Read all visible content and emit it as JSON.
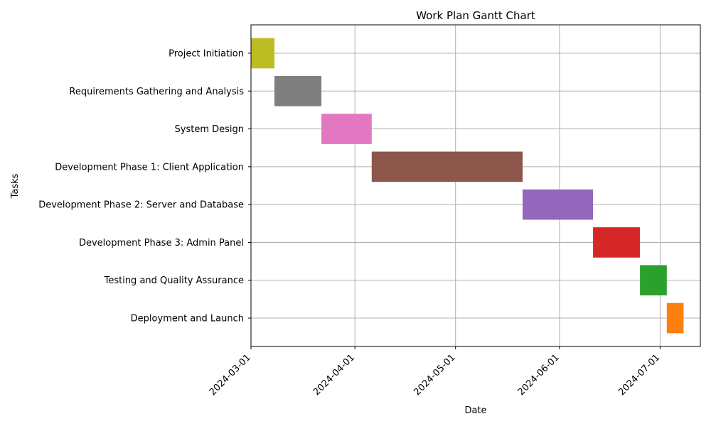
{
  "chart_data": {
    "type": "gantt",
    "title": "Work Plan Gantt Chart",
    "xlabel": "Date",
    "ylabel": "Tasks",
    "xlim": [
      "2024-03-01",
      "2024-07-13"
    ],
    "x_ticks": [
      "2024-03-01",
      "2024-04-01",
      "2024-05-01",
      "2024-06-01",
      "2024-07-01"
    ],
    "grid": true,
    "tasks": [
      {
        "label": "Project Initiation",
        "start": "2024-03-01",
        "end": "2024-03-07",
        "color": "#bcbd22"
      },
      {
        "label": "Requirements Gathering and Analysis",
        "start": "2024-03-08",
        "end": "2024-03-21",
        "color": "#7f7f7f"
      },
      {
        "label": "System Design",
        "start": "2024-03-22",
        "end": "2024-04-05",
        "color": "#e377c2"
      },
      {
        "label": "Development Phase 1: Client Application",
        "start": "2024-04-06",
        "end": "2024-05-20",
        "color": "#8c564b"
      },
      {
        "label": "Development Phase 2: Server and Database",
        "start": "2024-05-21",
        "end": "2024-06-10",
        "color": "#9467bd"
      },
      {
        "label": "Development Phase 3: Admin Panel",
        "start": "2024-06-11",
        "end": "2024-06-24",
        "color": "#d62728"
      },
      {
        "label": "Testing and Quality Assurance",
        "start": "2024-06-25",
        "end": "2024-07-02",
        "color": "#2ca02c"
      },
      {
        "label": "Deployment and Launch",
        "start": "2024-07-03",
        "end": "2024-07-07",
        "color": "#ff7f0e"
      }
    ]
  }
}
